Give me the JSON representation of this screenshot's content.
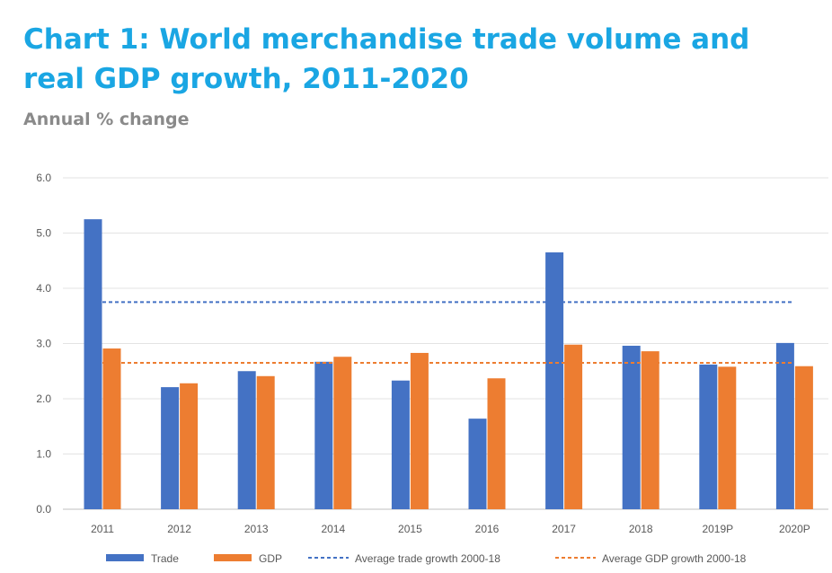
{
  "title": "Chart 1: World merchandise trade volume and real GDP growth, 2011-2020",
  "subtitle": "Annual % change",
  "chart_data": {
    "type": "bar",
    "categories": [
      "2011",
      "2012",
      "2013",
      "2014",
      "2015",
      "2016",
      "2017",
      "2018",
      "2019P",
      "2020P"
    ],
    "series": [
      {
        "name": "Trade",
        "color": "#4472c4",
        "values": [
          5.25,
          2.21,
          2.5,
          2.67,
          2.33,
          1.64,
          4.65,
          2.96,
          2.62,
          3.01
        ]
      },
      {
        "name": "GDP",
        "color": "#ed7d31",
        "values": [
          2.91,
          2.28,
          2.41,
          2.76,
          2.83,
          2.37,
          2.98,
          2.86,
          2.58,
          2.59
        ]
      }
    ],
    "reference_lines": [
      {
        "name": "Average trade growth 2000-18",
        "color": "#4472c4",
        "value": 3.75,
        "style": "dashed"
      },
      {
        "name": "Average GDP growth 2000-18",
        "color": "#ed7d31",
        "value": 2.65,
        "style": "dashed"
      }
    ],
    "y_ticks": [
      "0.0",
      "1.0",
      "2.0",
      "3.0",
      "4.0",
      "5.0",
      "6.0"
    ],
    "ylim": [
      0,
      6
    ],
    "grid": true,
    "legend_position": "bottom"
  }
}
